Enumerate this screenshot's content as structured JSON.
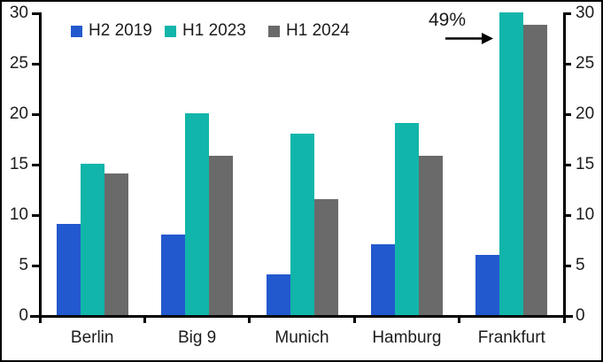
{
  "chart_data": {
    "type": "bar",
    "title": "",
    "categories": [
      "Berlin",
      "Big 9",
      "Munich",
      "Hamburg",
      "Frankfurt"
    ],
    "series": [
      {
        "name": "H2 2019",
        "color": "#2359ce",
        "values": [
          9,
          8,
          4,
          7,
          6
        ]
      },
      {
        "name": "H1 2023",
        "color": "#11b5aa",
        "values": [
          15,
          20,
          18,
          19,
          49
        ]
      },
      {
        "name": "H1 2024",
        "color": "#6a6a6a",
        "values": [
          14,
          15.8,
          11.5,
          15.8,
          28.8
        ]
      }
    ],
    "ylim": [
      0,
      30
    ],
    "yticks": [
      0,
      5,
      10,
      15,
      20,
      25,
      30
    ],
    "dual_y_axis": true,
    "grid": false,
    "legend_position": "top",
    "xlabel": "",
    "ylabel": "",
    "annotation": {
      "text": "49%",
      "target_category": "Frankfurt",
      "target_series": "H1 2023",
      "note": "Frankfurt H1 2023 bar exceeds the axis maximum and is clipped at 30"
    }
  }
}
